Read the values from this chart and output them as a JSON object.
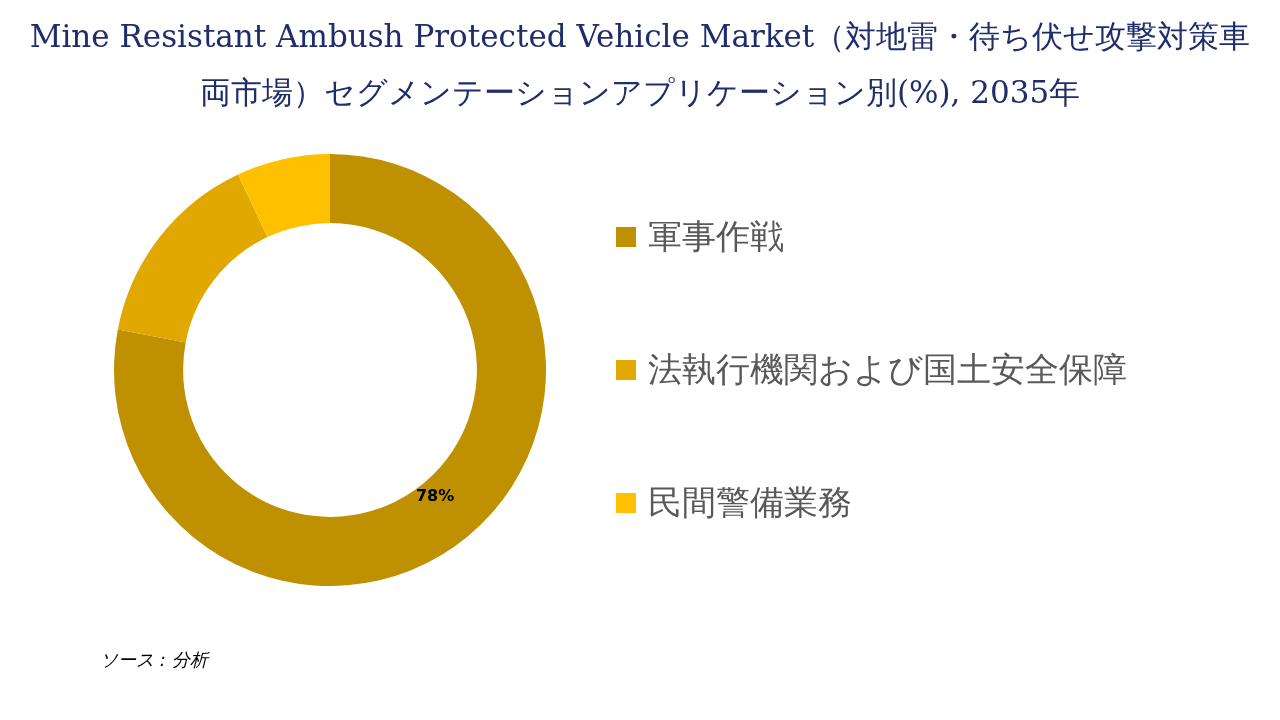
{
  "chart_data": {
    "type": "donut",
    "title": "Mine Resistant Ambush Protected Vehicle Market（対地雷・待ち伏せ攻撃対策車両市場）セグメンテーションアプリケーション別(%), 2035年",
    "categories": [
      "軍事作戦",
      "法執行機関および国土安全保障",
      "民間警備業務"
    ],
    "values": [
      78,
      15,
      7
    ],
    "colors": [
      "#bf9000",
      "#e0a800",
      "#ffc000"
    ],
    "value_labels": [
      "78%",
      null,
      null
    ],
    "legend": "right",
    "annotations": [
      "ソース : 分析"
    ]
  }
}
